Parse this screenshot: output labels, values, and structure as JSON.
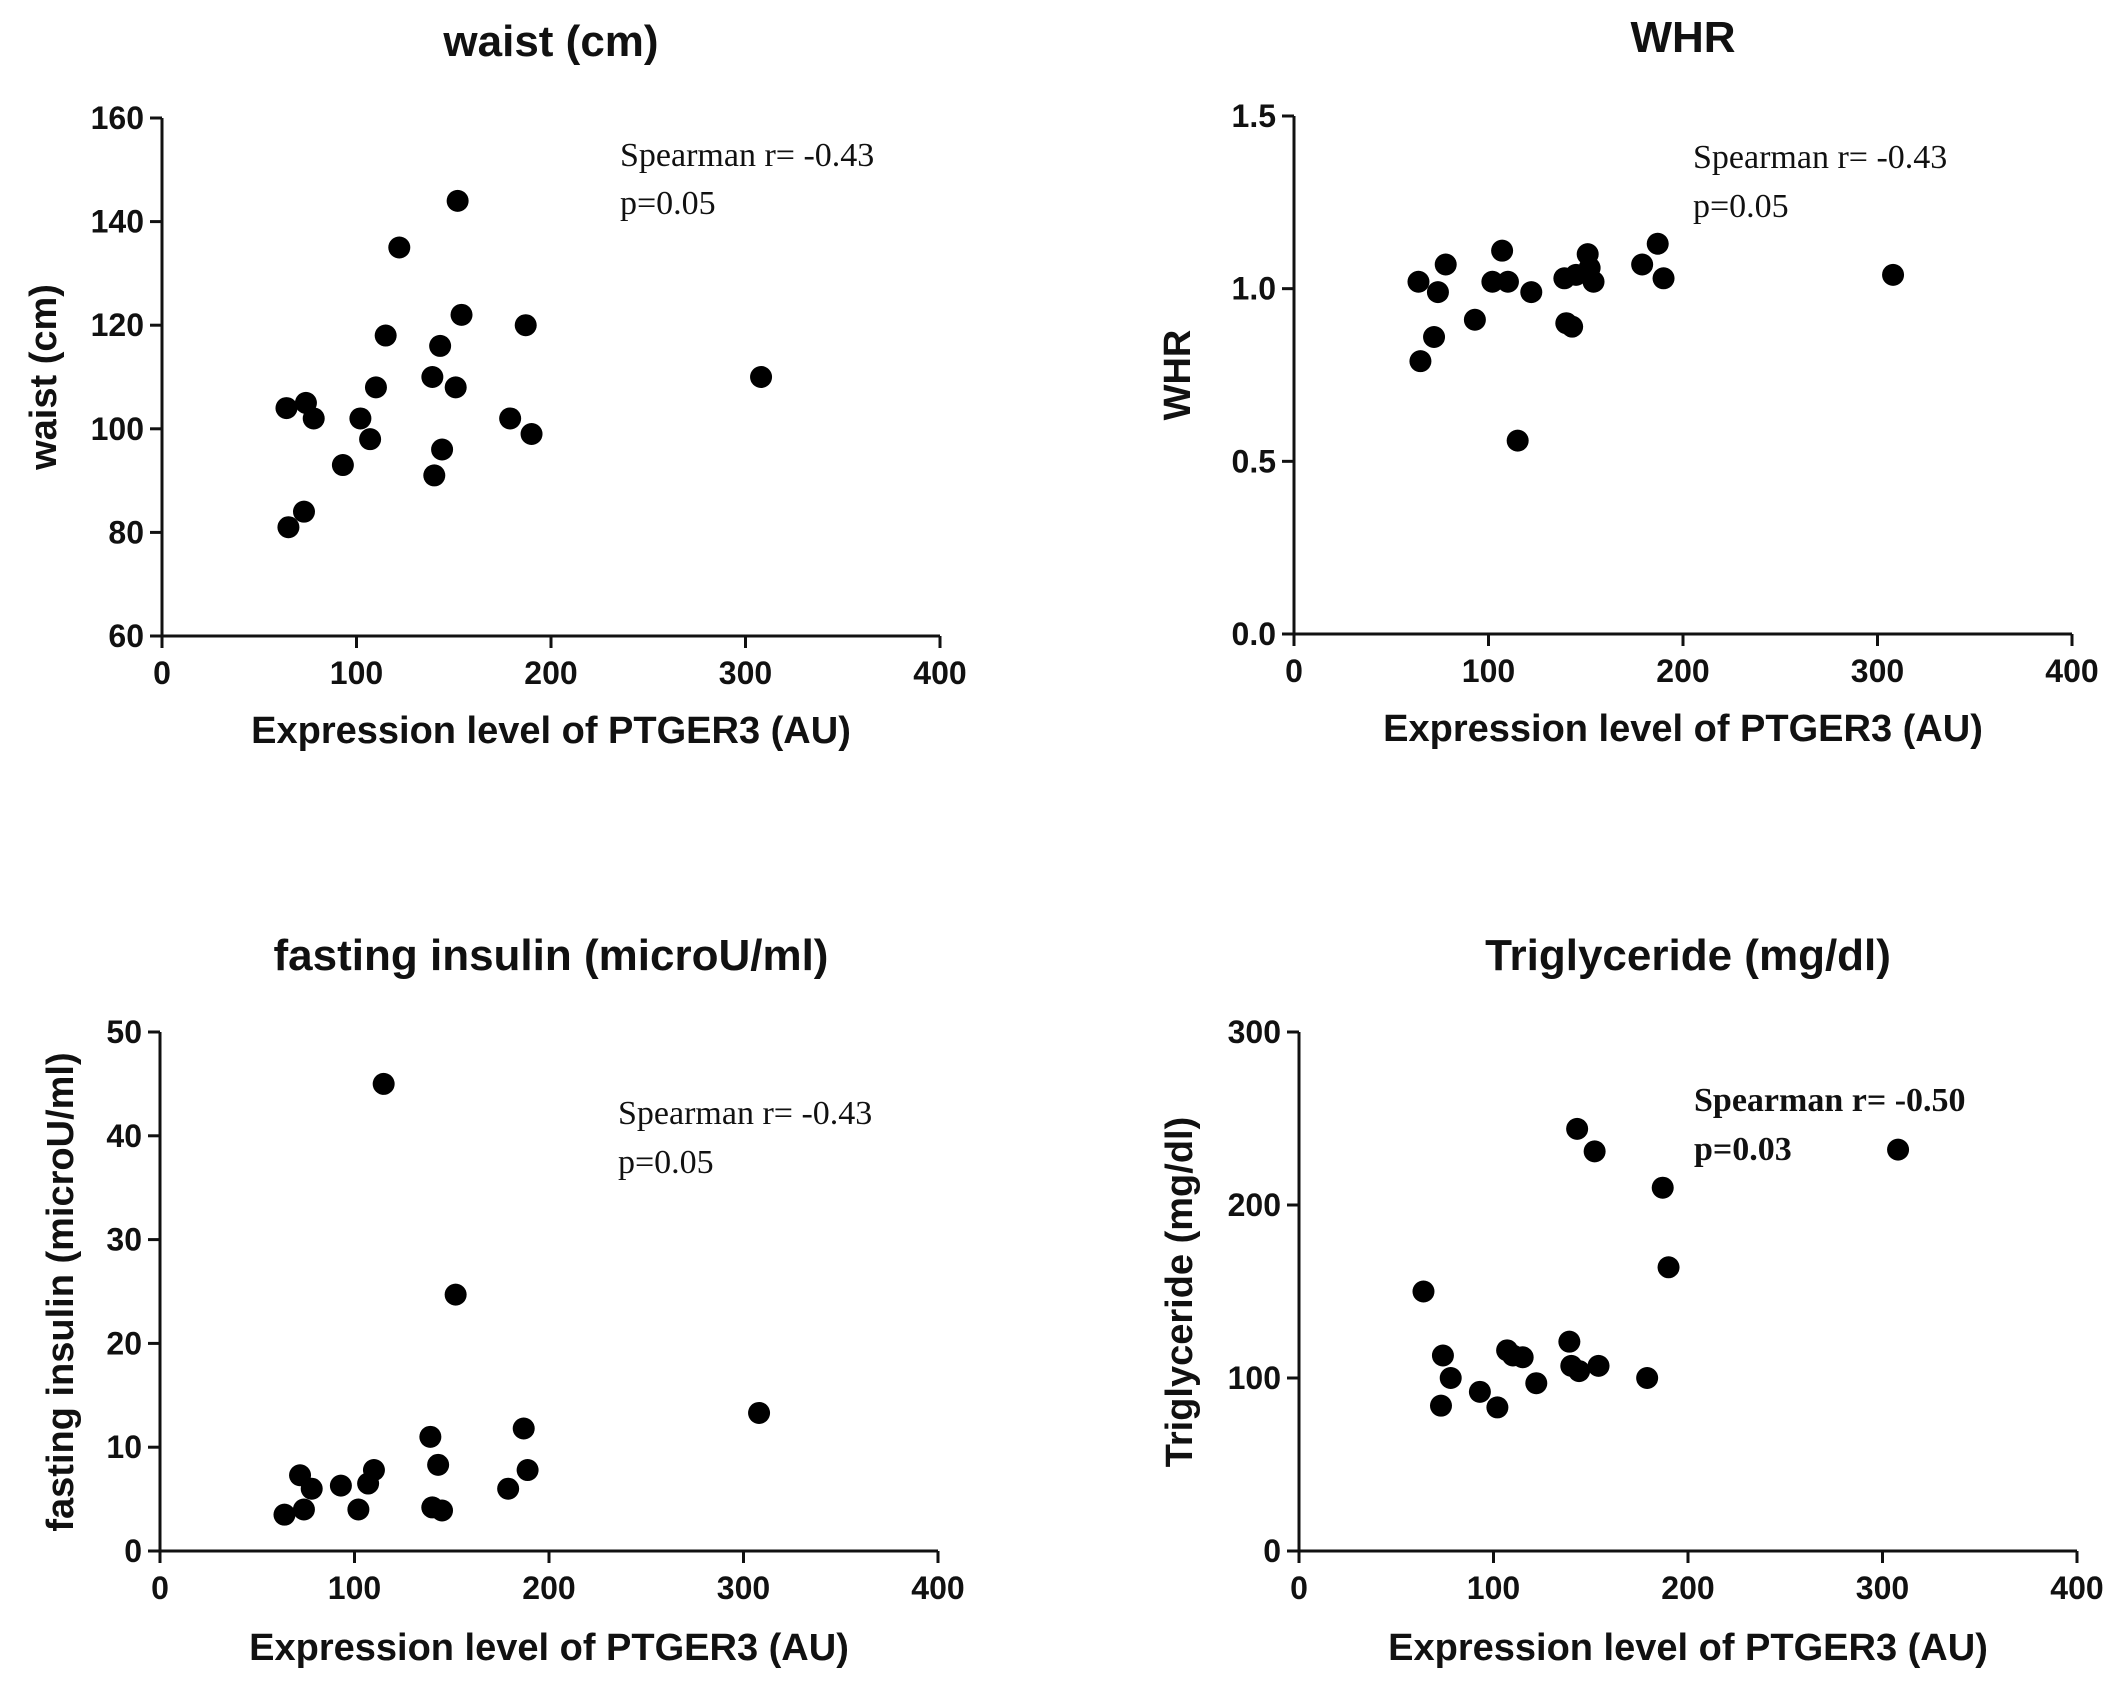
{
  "chart_data": [
    {
      "type": "scatter",
      "title": "waist (cm)",
      "xlabel": "Expression level of PTGER3 (AU)",
      "ylabel": "waist (cm)",
      "xlim": [
        0,
        400
      ],
      "ylim": [
        60,
        160
      ],
      "xticks": [
        0,
        100,
        200,
        300,
        400
      ],
      "yticks": [
        60,
        80,
        100,
        120,
        140,
        160
      ],
      "tick_decimals": 0,
      "annotation": {
        "line1": "Spearman r= -0.43",
        "line2": "p=0.05"
      },
      "points": [
        {
          "x": 64,
          "y": 104
        },
        {
          "x": 74,
          "y": 105
        },
        {
          "x": 78,
          "y": 102
        },
        {
          "x": 65,
          "y": 81
        },
        {
          "x": 73,
          "y": 84
        },
        {
          "x": 93,
          "y": 93
        },
        {
          "x": 102,
          "y": 102
        },
        {
          "x": 107,
          "y": 98
        },
        {
          "x": 110,
          "y": 108
        },
        {
          "x": 115,
          "y": 118
        },
        {
          "x": 122,
          "y": 135
        },
        {
          "x": 139,
          "y": 110
        },
        {
          "x": 140,
          "y": 91
        },
        {
          "x": 143,
          "y": 116
        },
        {
          "x": 144,
          "y": 96
        },
        {
          "x": 151,
          "y": 108
        },
        {
          "x": 152,
          "y": 144
        },
        {
          "x": 154,
          "y": 122
        },
        {
          "x": 179,
          "y": 102
        },
        {
          "x": 187,
          "y": 120
        },
        {
          "x": 190,
          "y": 99
        },
        {
          "x": 308,
          "y": 110
        }
      ]
    },
    {
      "type": "scatter",
      "title": "WHR",
      "xlabel": "Expression level of PTGER3 (AU)",
      "ylabel": "WHR",
      "xlim": [
        0,
        400
      ],
      "ylim": [
        0,
        1.5
      ],
      "xticks": [
        0,
        100,
        200,
        300,
        400
      ],
      "yticks": [
        0.0,
        0.5,
        1.0,
        1.5
      ],
      "tick_decimals": 1,
      "annotation": {
        "line1": "Spearman r= -0.43",
        "line2": "p=0.05"
      },
      "points": [
        {
          "x": 64,
          "y": 1.02
        },
        {
          "x": 74,
          "y": 0.99
        },
        {
          "x": 78,
          "y": 1.07
        },
        {
          "x": 65,
          "y": 0.79
        },
        {
          "x": 72,
          "y": 0.86
        },
        {
          "x": 93,
          "y": 0.91
        },
        {
          "x": 102,
          "y": 1.02
        },
        {
          "x": 107,
          "y": 1.11
        },
        {
          "x": 110,
          "y": 1.02
        },
        {
          "x": 115,
          "y": 0.56
        },
        {
          "x": 122,
          "y": 0.99
        },
        {
          "x": 139,
          "y": 1.03
        },
        {
          "x": 140,
          "y": 0.9
        },
        {
          "x": 143,
          "y": 0.89
        },
        {
          "x": 145,
          "y": 1.04
        },
        {
          "x": 151,
          "y": 1.1
        },
        {
          "x": 152,
          "y": 1.06
        },
        {
          "x": 154,
          "y": 1.02
        },
        {
          "x": 179,
          "y": 1.07
        },
        {
          "x": 187,
          "y": 1.13
        },
        {
          "x": 190,
          "y": 1.03
        },
        {
          "x": 308,
          "y": 1.04
        }
      ]
    },
    {
      "type": "scatter",
      "title": "fasting insulin (microU/ml)",
      "xlabel": "Expression level of PTGER3 (AU)",
      "ylabel": "fasting insulin (microU/ml)",
      "xlim": [
        0,
        400
      ],
      "ylim": [
        0,
        50
      ],
      "xticks": [
        0,
        100,
        200,
        300,
        400
      ],
      "yticks": [
        0,
        10,
        20,
        30,
        40,
        50
      ],
      "tick_decimals": 0,
      "annotation": {
        "line1": "Spearman r= -0.43",
        "line2": "p=0.05"
      },
      "points": [
        {
          "x": 64,
          "y": 3.5
        },
        {
          "x": 72,
          "y": 7.3
        },
        {
          "x": 74,
          "y": 4.0
        },
        {
          "x": 78,
          "y": 6.0
        },
        {
          "x": 93,
          "y": 6.3
        },
        {
          "x": 102,
          "y": 4.0
        },
        {
          "x": 107,
          "y": 6.5
        },
        {
          "x": 110,
          "y": 7.8
        },
        {
          "x": 115,
          "y": 45.0
        },
        {
          "x": 139,
          "y": 11.0
        },
        {
          "x": 140,
          "y": 4.2
        },
        {
          "x": 143,
          "y": 8.3
        },
        {
          "x": 145,
          "y": 3.9
        },
        {
          "x": 152,
          "y": 24.7
        },
        {
          "x": 179,
          "y": 6.0
        },
        {
          "x": 187,
          "y": 11.8
        },
        {
          "x": 189,
          "y": 7.8
        },
        {
          "x": 308,
          "y": 13.3
        }
      ]
    },
    {
      "type": "scatter",
      "title": "Triglyceride (mg/dl)",
      "xlabel": "Expression level of PTGER3 (AU)",
      "ylabel": "Triglyceride (mg/dl)",
      "xlim": [
        0,
        400
      ],
      "ylim": [
        0,
        300
      ],
      "xticks": [
        0,
        100,
        200,
        300,
        400
      ],
      "yticks": [
        0,
        100,
        200,
        300
      ],
      "tick_decimals": 0,
      "annotation": {
        "line1": "Spearman r= -0.50",
        "line2": "p=0.03"
      },
      "points": [
        {
          "x": 64,
          "y": 150
        },
        {
          "x": 74,
          "y": 113
        },
        {
          "x": 78,
          "y": 100
        },
        {
          "x": 73,
          "y": 84
        },
        {
          "x": 93,
          "y": 92
        },
        {
          "x": 102,
          "y": 83
        },
        {
          "x": 107,
          "y": 116
        },
        {
          "x": 110,
          "y": 113
        },
        {
          "x": 115,
          "y": 112
        },
        {
          "x": 122,
          "y": 97
        },
        {
          "x": 139,
          "y": 121
        },
        {
          "x": 140,
          "y": 107
        },
        {
          "x": 144,
          "y": 104
        },
        {
          "x": 143,
          "y": 244
        },
        {
          "x": 152,
          "y": 231
        },
        {
          "x": 154,
          "y": 107
        },
        {
          "x": 179,
          "y": 100
        },
        {
          "x": 187,
          "y": 210
        },
        {
          "x": 190,
          "y": 164
        },
        {
          "x": 308,
          "y": 232
        }
      ]
    }
  ]
}
